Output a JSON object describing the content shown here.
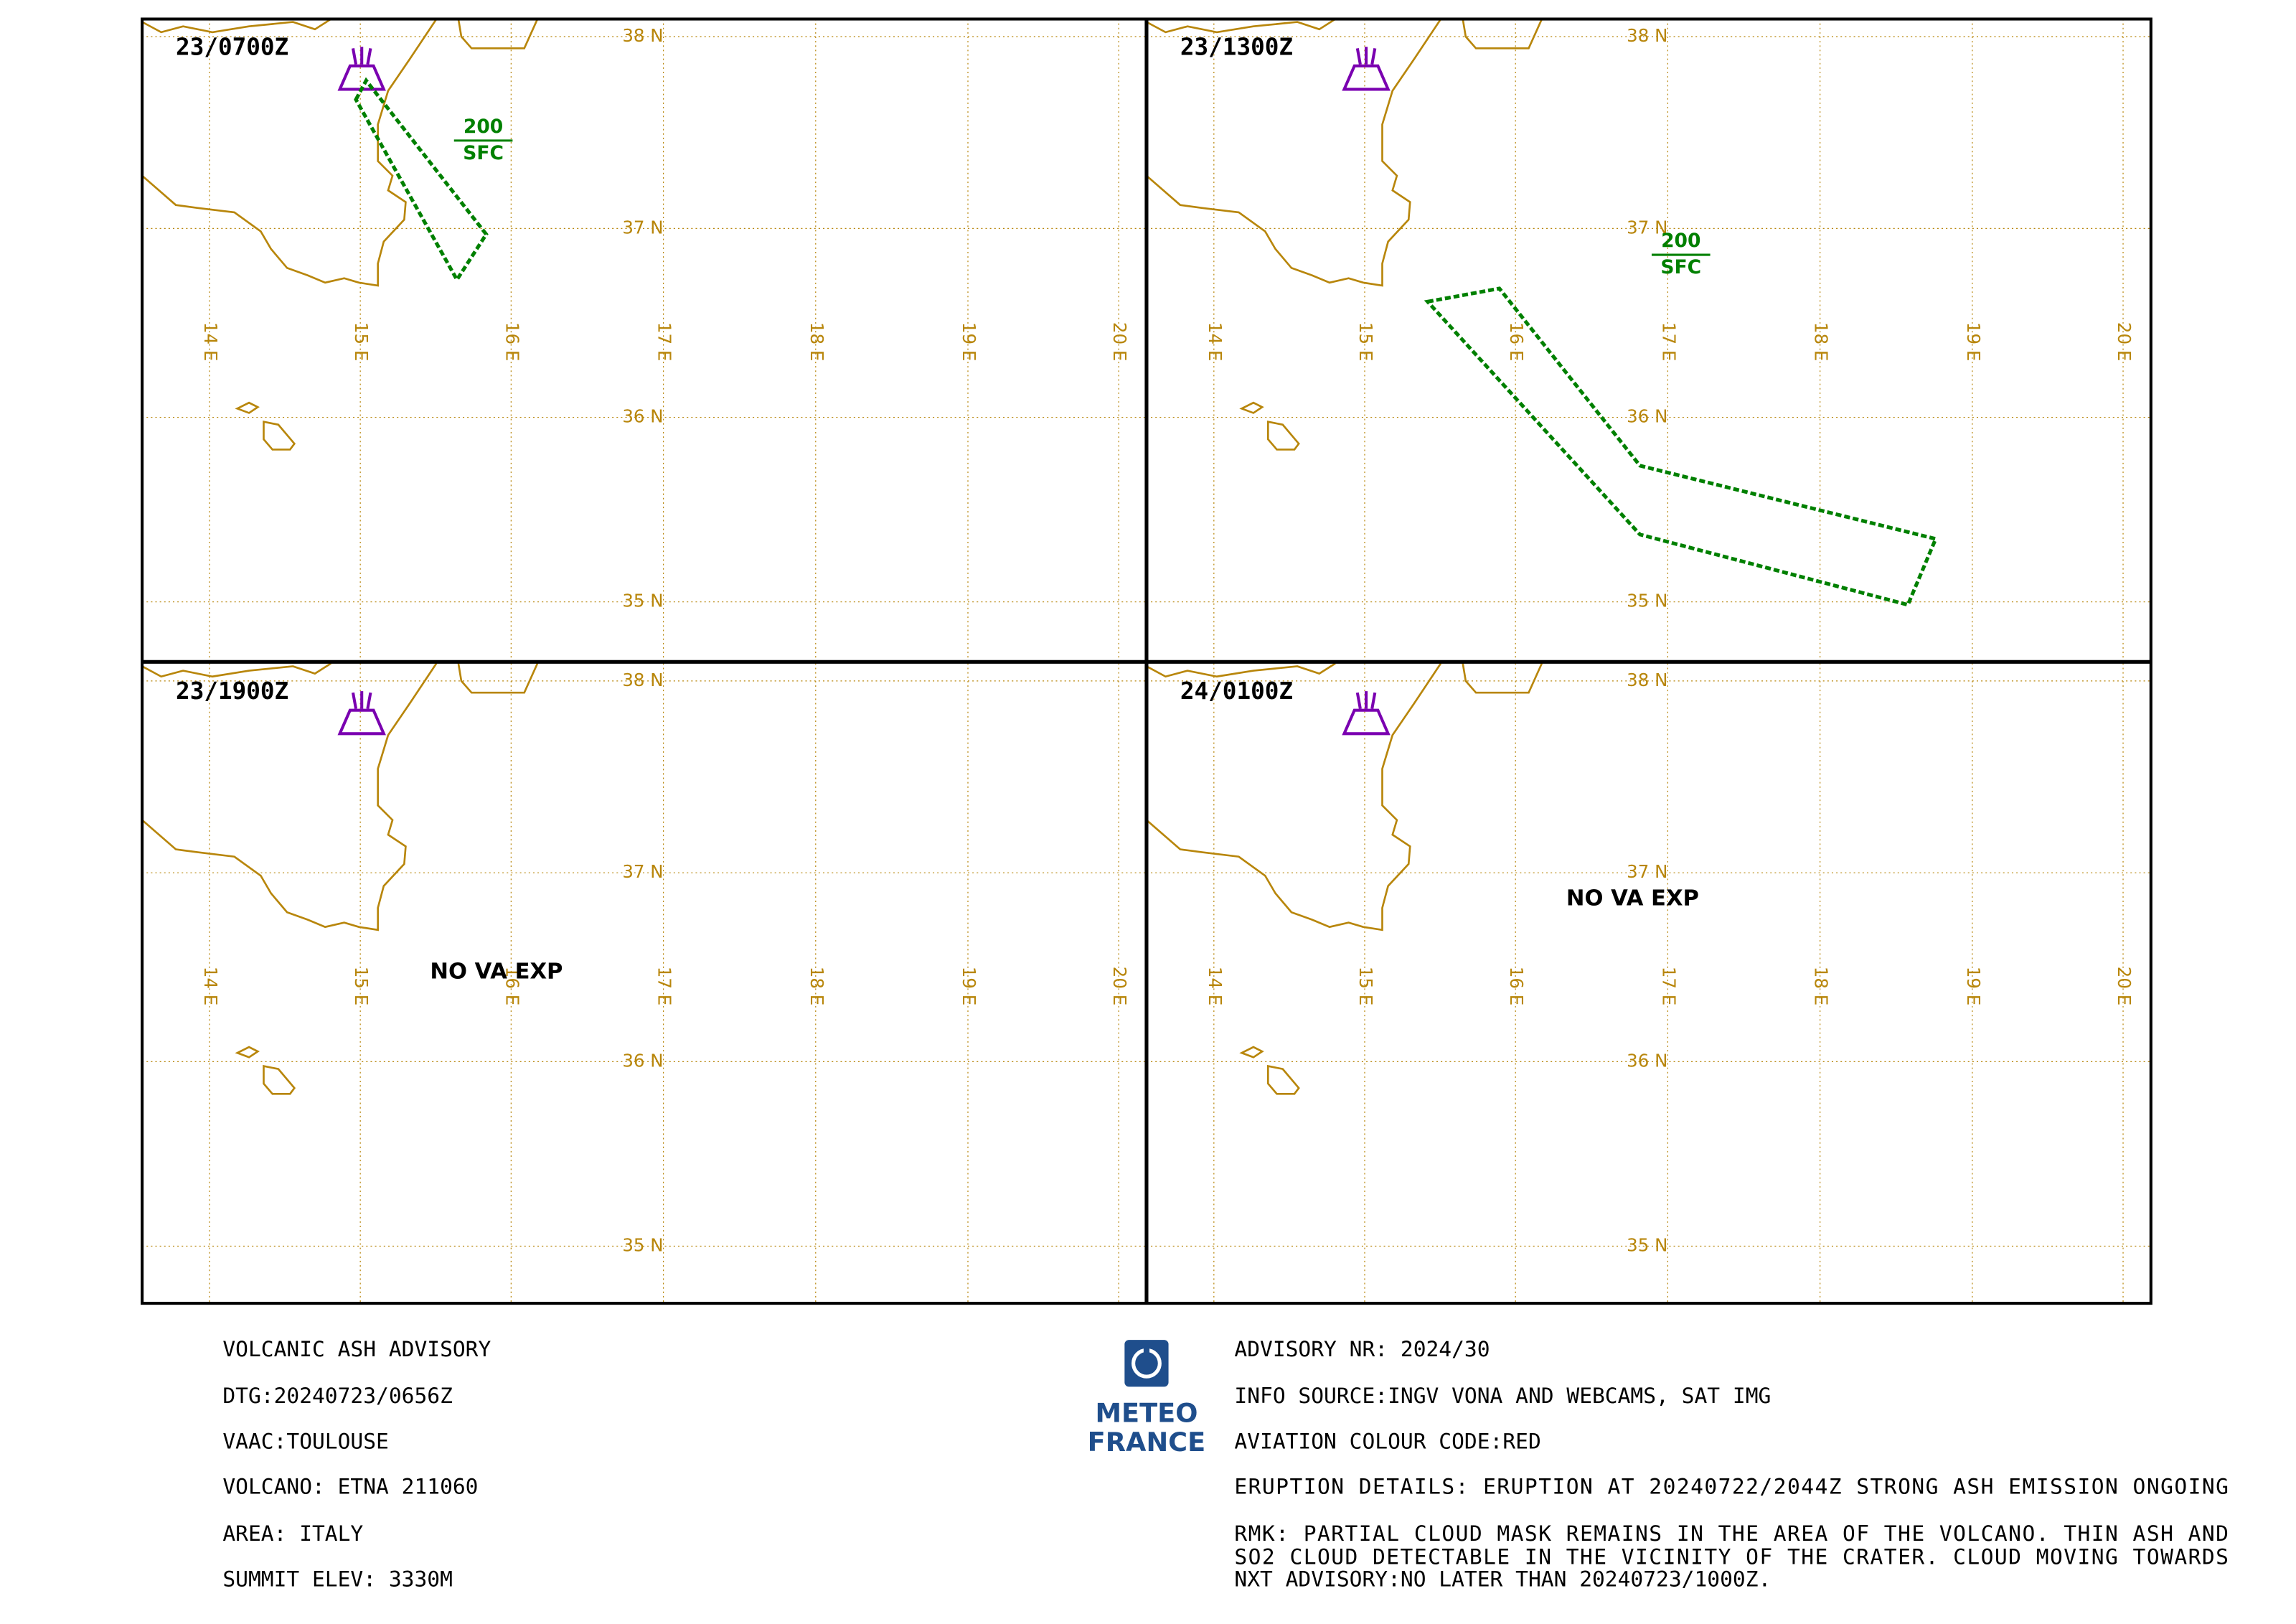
{
  "panels": [
    {
      "time": "23/0700Z",
      "ash_top": "200",
      "ash_base": "SFC"
    },
    {
      "time": "23/1300Z",
      "ash_top": "200",
      "ash_base": "SFC"
    },
    {
      "time": "23/1900Z",
      "remark": "NO VA EXP"
    },
    {
      "time": "24/0100Z",
      "remark": "NO VA EXP"
    }
  ],
  "grid": {
    "lat_labels": [
      "38 N",
      "37 N",
      "36 N",
      "35 N"
    ],
    "lon_labels": [
      "14 E",
      "15 E",
      "16 E",
      "17 E",
      "18 E",
      "19 E",
      "20 E"
    ]
  },
  "logo": {
    "line1": "METEO",
    "line2": "FRANCE"
  },
  "advisory": {
    "left": [
      "VOLCANIC ASH ADVISORY",
      "DTG:20240723/0656Z",
      "VAAC:TOULOUSE",
      "VOLCANO: ETNA 211060",
      "AREA: ITALY",
      "SUMMIT ELEV: 3330M"
    ],
    "right": [
      "ADVISORY NR: 2024/30",
      "INFO SOURCE:INGV VONA AND WEBCAMS, SAT IMG",
      "AVIATION COLOUR CODE:RED",
      "ERUPTION DETAILS: ERUPTION AT 20240722/2044Z STRONG ASH EMISSION ONGOING",
      "RMK: PARTIAL CLOUD MASK REMAINS IN THE AREA OF THE  VOLCANO. THIN ASH AND",
      "SO2 CLOUD DETECTABLE IN THE  VICINITY OF THE CRATER. CLOUD MOVING TOWARDS",
      "NXT ADVISORY:NO LATER THAN 20240723/1000Z."
    ]
  }
}
